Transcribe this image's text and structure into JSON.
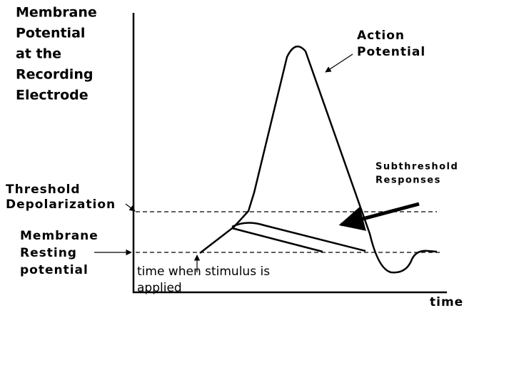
{
  "y_axis_label": [
    "Membrane",
    "Potential",
    "at the",
    "Recording",
    "Electrode"
  ],
  "action_potential": [
    "Action",
    "Potential"
  ],
  "subthreshold": [
    "Subthreshold",
    "Responses"
  ],
  "threshold": [
    "Threshold",
    "Depolarization"
  ],
  "resting": [
    "Membrane",
    "Resting",
    "potential"
  ],
  "stimulus": [
    "time when stimulus is",
    "applied"
  ],
  "x_axis_label": "time"
}
